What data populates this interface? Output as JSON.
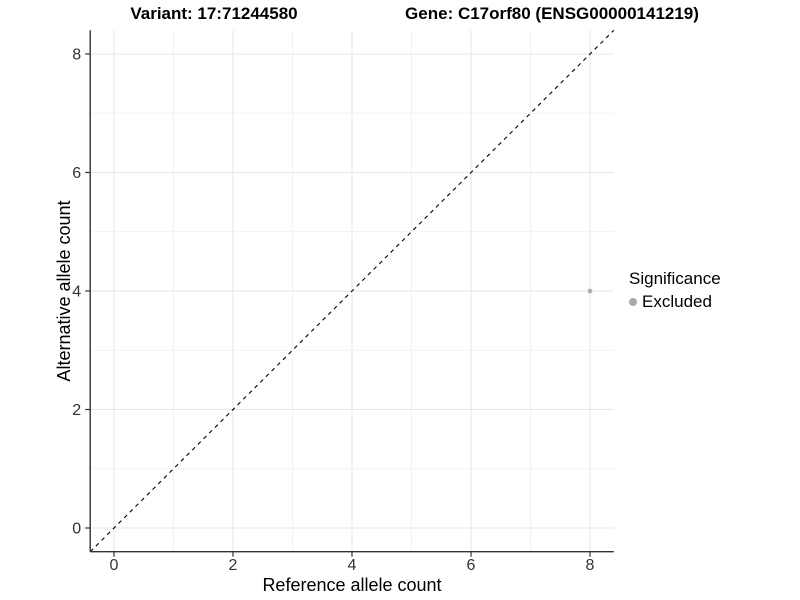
{
  "figure": {
    "title_left": "Variant: 17:71244580",
    "title_right": "Gene: C17orf80 (ENSG00000141219)"
  },
  "chart_data": {
    "type": "scatter",
    "xlabel": "Reference allele count",
    "ylabel": "Alternative allele count",
    "xlim": [
      -0.4,
      8.4
    ],
    "ylim": [
      -0.4,
      8.4
    ],
    "xticks": [
      0,
      2,
      4,
      6,
      8
    ],
    "yticks": [
      0,
      2,
      4,
      6,
      8
    ],
    "xticks_minor": [
      1,
      3,
      5,
      7
    ],
    "yticks_minor": [
      1,
      3,
      5,
      7
    ],
    "grid": "on",
    "series": [
      {
        "name": "Excluded",
        "color": "#b1b1b1",
        "points": [
          {
            "x": 8,
            "y": 4
          }
        ]
      }
    ],
    "identity_line": {
      "from": [
        -0.4,
        -0.4
      ],
      "to": [
        8.4,
        8.4
      ],
      "style": "dashed",
      "color": "#000000"
    },
    "legend": {
      "title": "Significance",
      "position": "right",
      "items": [
        {
          "label": "Excluded",
          "color": "#a9a9a9"
        }
      ]
    },
    "colors": {
      "panel_background": "#ffffff",
      "grid_major": "#e6e6e6",
      "grid_minor": "#f2f2f2",
      "axis_line": "#333333",
      "tick_label": "#333333",
      "text": "#000000"
    }
  }
}
